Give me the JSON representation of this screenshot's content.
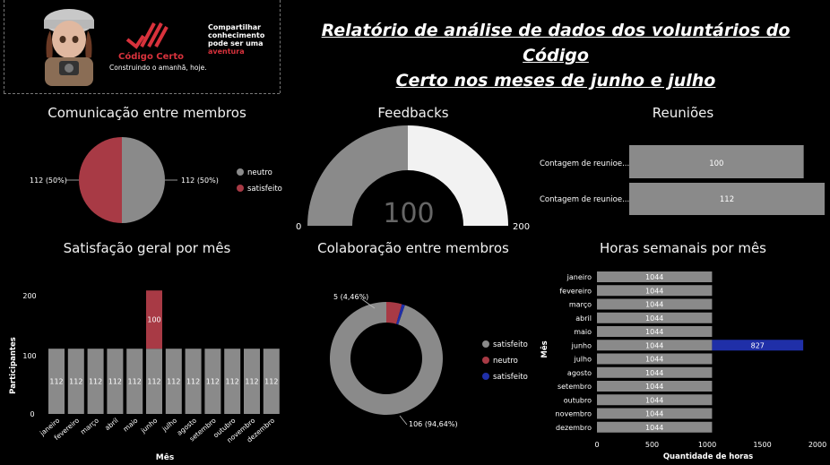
{
  "header": {
    "title_line1": "Relatório de análise de dados dos voluntários do Código",
    "title_line2": "Certo nos meses de junho e julho",
    "brand_name": "Código Certo",
    "brand_tagline": "Construindo o amanhã, hoje.",
    "slogan_line1": "Compartilhar",
    "slogan_line2": "conhecimento",
    "slogan_line3": "pode ser uma",
    "slogan_line4": "aventura"
  },
  "colors": {
    "gray": "#8a8a8a",
    "red": "#a83a45",
    "blue": "#1f2fa8",
    "light": "#f2f2f2"
  },
  "comunicacao": {
    "title": "Comunicação entre membros",
    "legend": [
      "neutro",
      "satisfeito"
    ],
    "left_label": "112 (50%)",
    "right_label": "112 (50%)"
  },
  "feedbacks": {
    "title": "Feedbacks",
    "min_label": "0",
    "max_label": "200",
    "value_label": "100"
  },
  "reunioes": {
    "title": "Reuniões",
    "rows": [
      {
        "label": "Contagem de reunioe...",
        "value_label": "100"
      },
      {
        "label": "Contagem de reunioe...",
        "value_label": "112"
      }
    ]
  },
  "satisfacao": {
    "title": "Satisfação geral por mês",
    "ylabel": "Participantes",
    "xlabel": "Mês",
    "y_ticks": [
      "0",
      "100",
      "200"
    ],
    "bar_labels": [
      "112",
      "112",
      "112",
      "112",
      "112",
      "112",
      "112",
      "112",
      "112",
      "112",
      "112",
      "112"
    ],
    "extra_label": "100"
  },
  "colaboracao": {
    "title": "Colaboração entre membros",
    "legend": [
      "satisfeito",
      "neutro",
      "satisfeito"
    ],
    "label_small": "5 (4,46%)",
    "label_big": "106 (94,64%)"
  },
  "horas": {
    "title": "Horas semanais por mês",
    "ylabel": "Mês",
    "xlabel": "Quantidade de horas",
    "x_ticks": [
      "0",
      "500",
      "1000",
      "1500",
      "2000"
    ],
    "bar_labels": [
      "1044",
      "1044",
      "1044",
      "1044",
      "1044",
      "1044",
      "1044",
      "1044",
      "1044",
      "1044",
      "1044",
      "1044"
    ],
    "extra_label": "827"
  },
  "chart_data": [
    {
      "type": "pie",
      "title": "Comunicação entre membros",
      "categories": [
        "neutro",
        "satisfeito"
      ],
      "values": [
        112,
        112
      ],
      "percent": [
        50,
        50
      ],
      "colors": [
        "#8a8a8a",
        "#a83a45"
      ],
      "legend": "right"
    },
    {
      "type": "gauge",
      "title": "Feedbacks",
      "value": 100,
      "min": 0,
      "max": 200
    },
    {
      "type": "bar",
      "orientation": "horizontal",
      "title": "Reuniões",
      "categories": [
        "Contagem de reunioe...",
        "Contagem de reunioe..."
      ],
      "values": [
        100,
        112
      ]
    },
    {
      "type": "bar",
      "stacked": true,
      "title": "Satisfação geral por mês",
      "xlabel": "Mês",
      "ylabel": "Participantes",
      "categories": [
        "janeiro",
        "fevereiro",
        "março",
        "abril",
        "maio",
        "junho",
        "julho",
        "agosto",
        "setembro",
        "outubro",
        "novembro",
        "dezembro"
      ],
      "series": [
        {
          "color": "#8a8a8a",
          "values": [
            112,
            112,
            112,
            112,
            112,
            112,
            112,
            112,
            112,
            112,
            112,
            112
          ]
        },
        {
          "color": "#a83a45",
          "values": [
            0,
            0,
            0,
            0,
            0,
            100,
            0,
            0,
            0,
            0,
            0,
            0
          ]
        }
      ],
      "ylim": [
        0,
        212
      ]
    },
    {
      "type": "pie",
      "donut": true,
      "title": "Colaboração entre membros",
      "categories": [
        "satisfeito",
        "neutro",
        "satisfeito"
      ],
      "values": [
        106,
        5,
        1
      ],
      "colors": [
        "#8a8a8a",
        "#a83a45",
        "#1f2fa8"
      ],
      "labels": [
        "106 (94,64%)",
        "5 (4,46%)",
        ""
      ],
      "legend": "right"
    },
    {
      "type": "bar",
      "orientation": "horizontal",
      "stacked": true,
      "title": "Horas semanais por mês",
      "xlabel": "Quantidade de horas",
      "ylabel": "Mês",
      "categories": [
        "janeiro",
        "fevereiro",
        "março",
        "abril",
        "maio",
        "junho",
        "julho",
        "agosto",
        "setembro",
        "outubro",
        "novembro",
        "dezembro"
      ],
      "series": [
        {
          "color": "#8a8a8a",
          "values": [
            1044,
            1044,
            1044,
            1044,
            1044,
            1044,
            1044,
            1044,
            1044,
            1044,
            1044,
            1044
          ]
        },
        {
          "color": "#1f2fa8",
          "values": [
            0,
            0,
            0,
            0,
            0,
            827,
            0,
            0,
            0,
            0,
            0,
            0
          ]
        }
      ],
      "xlim": [
        0,
        2000
      ]
    }
  ]
}
